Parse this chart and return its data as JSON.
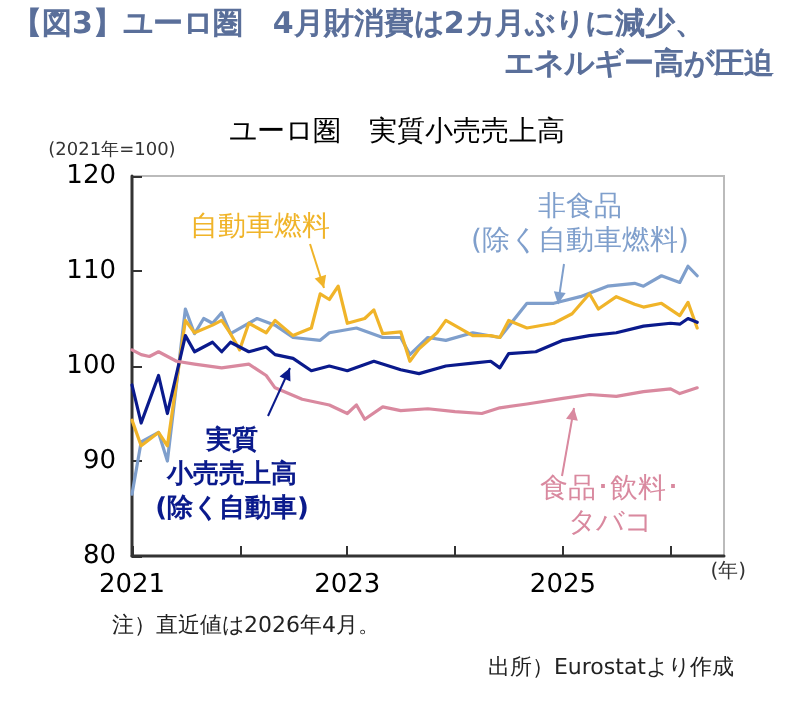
{
  "chart_data": {
    "type": "line",
    "title": "【図3】ユーロ圏　4月財消費は2カ月ぶりに減少、エネルギー高が圧迫",
    "subtitle": "ユーロ圏　実質小売売上高",
    "ylabel": "(2021年=100)",
    "xlabel": "(年)",
    "annotations": [
      "注）直近値は2026年4月。",
      "出所）Eurostatより作成"
    ],
    "xlim": [
      "2021-01",
      "2026-07"
    ],
    "xticks": [
      "2021",
      {
        "value": "2022",
        "label": null
      },
      "2023",
      {
        "value": "2024",
        "label": null
      },
      "2025",
      {
        "value": "2026",
        "label": null
      }
    ],
    "ylim": [
      80,
      120
    ],
    "yticks": [
      80,
      90,
      100,
      110,
      120
    ],
    "grid": false,
    "marker": "none",
    "line_style": "solid",
    "series": [
      {
        "name": "非食品(除く自動車燃料)",
        "color": "#7f9fcc",
        "x": [
          "2021-01",
          "2021-02",
          "2021-04",
          "2021-05",
          "2021-07",
          "2021-08",
          "2021-09",
          "2021-10",
          "2021-11",
          "2021-12",
          "2022-03",
          "2022-05",
          "2022-07",
          "2022-10",
          "2022-11",
          "2023-02",
          "2023-05",
          "2023-07",
          "2023-08",
          "2023-10",
          "2023-12",
          "2024-03",
          "2024-06",
          "2024-09",
          "2024-12",
          "2025-03",
          "2025-06",
          "2025-09",
          "2025-10",
          "2025-12",
          "2026-02",
          "2026-03",
          "2026-04"
        ],
        "values": [
          86.5,
          92,
          93,
          90,
          106,
          103.4,
          105,
          104.5,
          105.6,
          103.4,
          105,
          104.3,
          103,
          102.7,
          103.5,
          104,
          103,
          103,
          101.2,
          103,
          102.7,
          103.5,
          103,
          106.6,
          106.6,
          107.3,
          108.4,
          108.7,
          108.4,
          109.5,
          108.8,
          110.5,
          109.5
        ]
      },
      {
        "name": "自動車燃料",
        "color": "#f0b429",
        "x": [
          "2021-01",
          "2021-02",
          "2021-04",
          "2021-05",
          "2021-07",
          "2021-08",
          "2021-10",
          "2021-11",
          "2021-12",
          "2022-01",
          "2022-02",
          "2022-04",
          "2022-05",
          "2022-07",
          "2022-09",
          "2022-10",
          "2022-11",
          "2022-12",
          "2023-01",
          "2023-03",
          "2023-04",
          "2023-05",
          "2023-07",
          "2023-08",
          "2023-09",
          "2023-11",
          "2023-12",
          "2024-03",
          "2024-05",
          "2024-06",
          "2024-07",
          "2024-09",
          "2024-12",
          "2025-02",
          "2025-04",
          "2025-05",
          "2025-07",
          "2025-09",
          "2025-10",
          "2025-12",
          "2026-02",
          "2026-03",
          "2026-04"
        ],
        "values": [
          94.3,
          91.6,
          93,
          91.6,
          104.8,
          103.5,
          104.3,
          104.8,
          103.4,
          101.7,
          104.5,
          103.5,
          104.8,
          103.2,
          104,
          107.6,
          107,
          108.4,
          104.5,
          105,
          105.9,
          103.4,
          103.6,
          100.5,
          101.8,
          103.5,
          104.8,
          103.2,
          103.2,
          103,
          104.8,
          104,
          104.5,
          105.5,
          107.6,
          106,
          107.3,
          106.5,
          106.2,
          106.6,
          105.3,
          106.7,
          104
        ]
      },
      {
        "name": "実質小売売上高(除く自動車)",
        "color": "#0a1a8c",
        "x": [
          "2021-01",
          "2021-02",
          "2021-04",
          "2021-05",
          "2021-07",
          "2021-08",
          "2021-10",
          "2021-11",
          "2021-12",
          "2022-02",
          "2022-04",
          "2022-05",
          "2022-07",
          "2022-09",
          "2022-11",
          "2023-01",
          "2023-04",
          "2023-07",
          "2023-09",
          "2023-12",
          "2024-03",
          "2024-05",
          "2024-06",
          "2024-07",
          "2024-10",
          "2025-01",
          "2025-04",
          "2025-07",
          "2025-10",
          "2026-01",
          "2026-02",
          "2026-03",
          "2026-04"
        ],
        "values": [
          98,
          94,
          99,
          95,
          103.2,
          101.5,
          102.5,
          101.5,
          102.5,
          101.5,
          102,
          101.2,
          100.8,
          99.5,
          100,
          99.5,
          100.5,
          99.6,
          99.2,
          100,
          100.3,
          100.5,
          99.8,
          101.3,
          101.5,
          102.7,
          103.2,
          103.5,
          104.2,
          104.5,
          104.4,
          105,
          104.6
        ]
      },
      {
        "name": "食品･飲料･タバコ",
        "color": "#d9899f",
        "x": [
          "2021-01",
          "2021-02",
          "2021-03",
          "2021-04",
          "2021-06",
          "2021-08",
          "2021-11",
          "2022-02",
          "2022-04",
          "2022-05",
          "2022-08",
          "2022-11",
          "2023-01",
          "2023-02",
          "2023-03",
          "2023-05",
          "2023-07",
          "2023-10",
          "2024-01",
          "2024-04",
          "2024-06",
          "2024-09",
          "2025-01",
          "2025-04",
          "2025-07",
          "2025-10",
          "2026-01",
          "2026-02",
          "2026-04"
        ],
        "values": [
          101.7,
          101.2,
          101,
          101.5,
          100.5,
          100.2,
          99.8,
          100.2,
          99,
          97.7,
          96.5,
          95.9,
          95,
          95.9,
          94.4,
          95.7,
          95.3,
          95.5,
          95.2,
          95,
          95.6,
          96,
          96.6,
          97,
          96.8,
          97.3,
          97.6,
          97.1,
          97.7
        ]
      }
    ]
  }
}
